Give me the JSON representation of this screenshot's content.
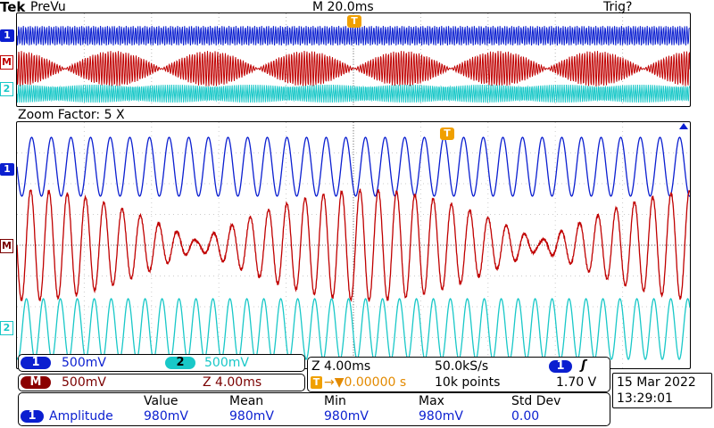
{
  "header": {
    "brand": "Tek",
    "mode": "PreVu",
    "timebase": "M 20.0ms",
    "trigger_status": "Trig?"
  },
  "zoom": {
    "label": "Zoom Factor: 5 X"
  },
  "markers": {
    "ch1": "1",
    "math": "M",
    "ch2": "2",
    "trigger": "T"
  },
  "channels": {
    "ch1": {
      "badge": "1",
      "scale": "500mV",
      "color": "#0b1fd0"
    },
    "ch2": {
      "badge": "2",
      "scale": "500mV",
      "color": "#19c8c8"
    },
    "math": {
      "badge": "M",
      "scale": "500mV",
      "zoom_scale": "Z 4.00ms",
      "color": "#c00000"
    }
  },
  "acquisition": {
    "zoom_time": "Z 4.00ms",
    "sample_rate": "50.0kS/s",
    "trigger_badge": "T",
    "trigger_position": "→▼0.00000 s",
    "record_length": "10k points",
    "trigger_channel": "1",
    "trigger_slope": "ʃ",
    "trigger_level": "1.70 V"
  },
  "datetime": {
    "date": "15 Mar  2022",
    "time": "13:29:01"
  },
  "measurements": {
    "headers": [
      "Value",
      "Mean",
      "Min",
      "Max",
      "Std Dev"
    ],
    "row": {
      "badge": "1",
      "name": "Amplitude",
      "values": [
        "980mV",
        "980mV",
        "980mV",
        "980mV",
        "0.00"
      ]
    }
  }
}
